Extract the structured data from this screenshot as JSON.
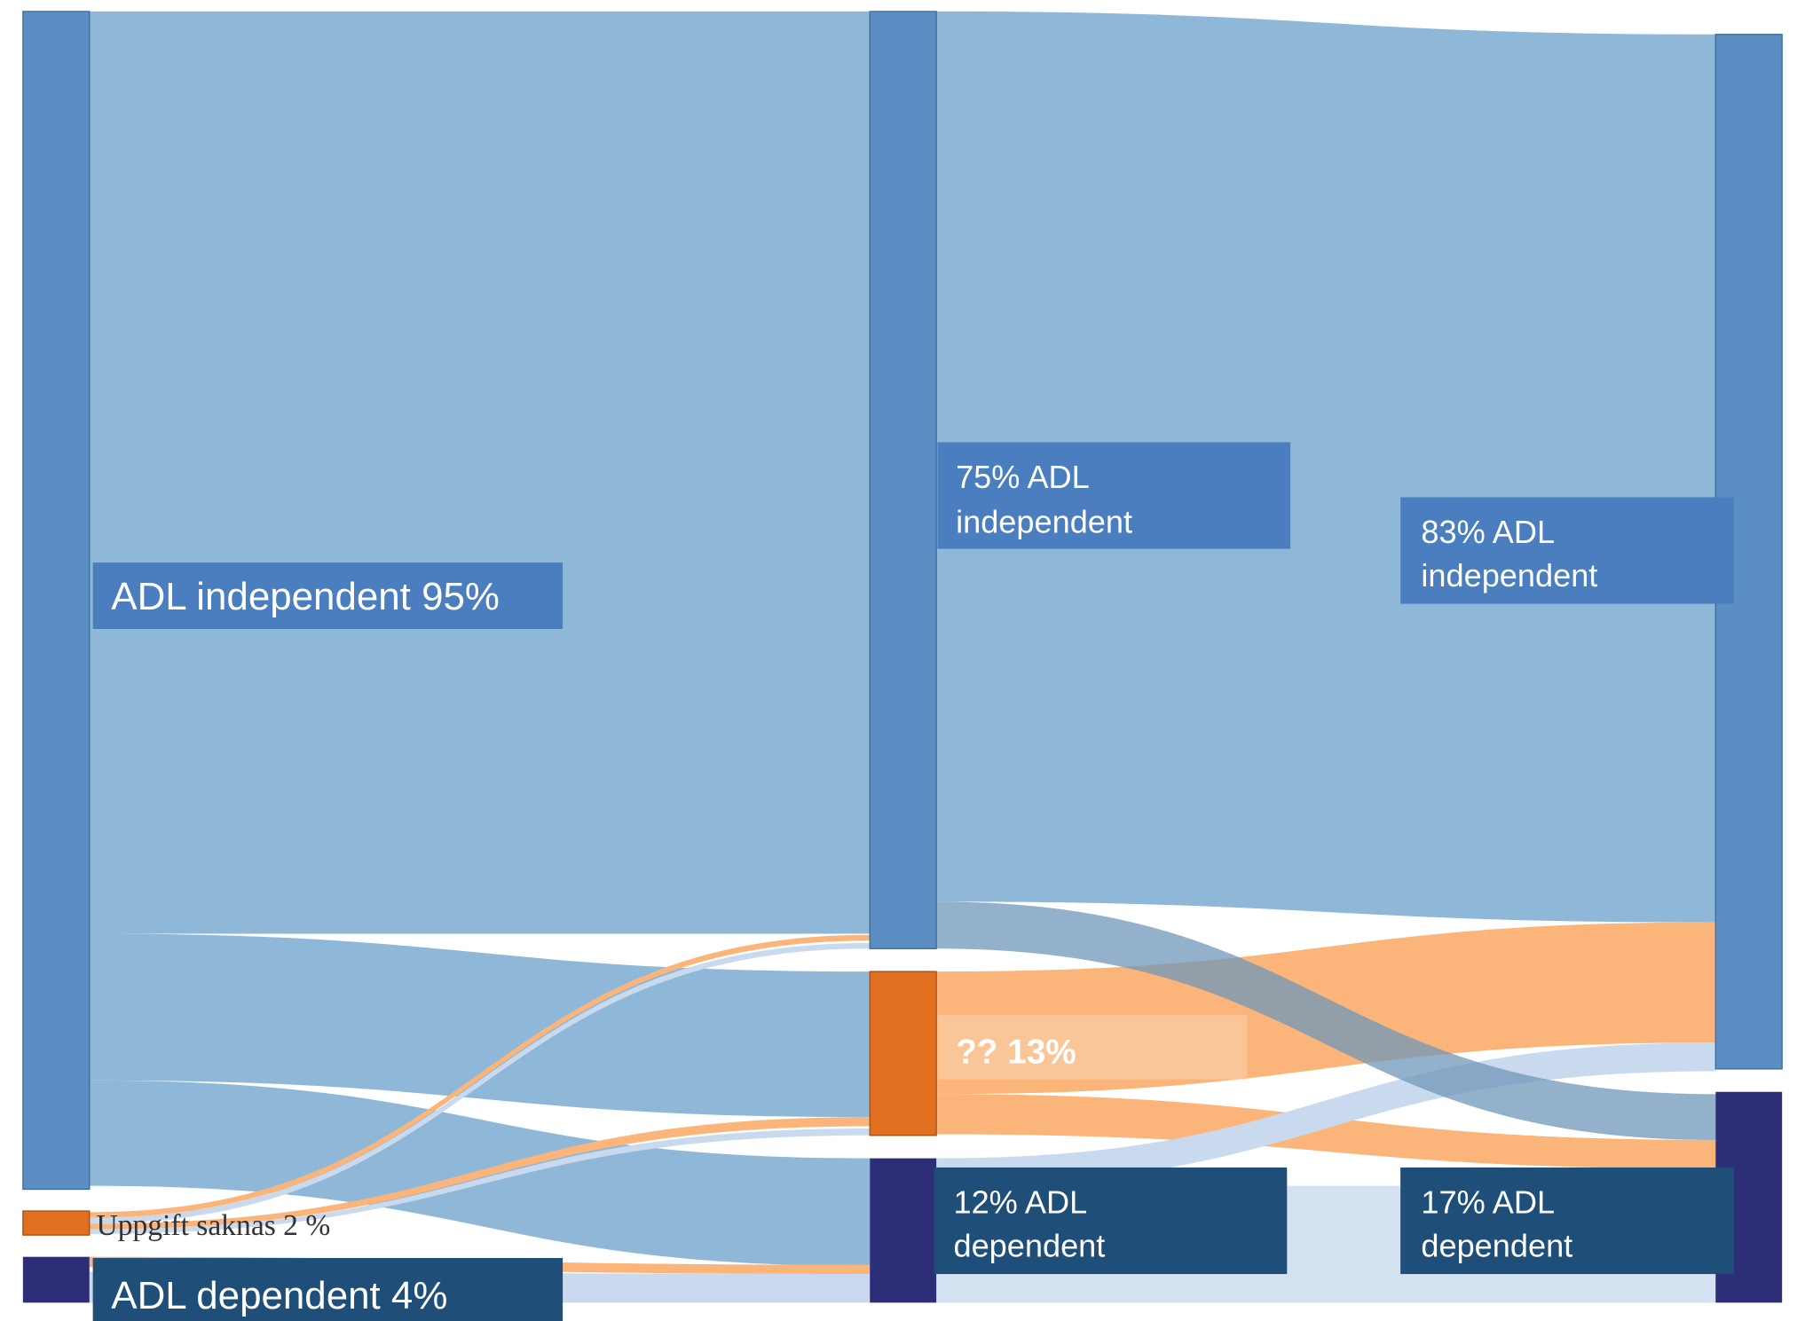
{
  "labels": {
    "start_independent": "ADL independent 95%",
    "start_missing": "Uppgift saknas 2 %",
    "start_dependent": "ADL dependent 4%",
    "mid_independent": [
      "75% ADL",
      "independent"
    ],
    "mid_unknown": "??  13%",
    "mid_dependent": [
      "12% ADL",
      "dependent"
    ],
    "end_independent": [
      "83% ADL",
      "independent"
    ],
    "end_dependent": [
      "17% ADL",
      "dependent"
    ]
  }
}
